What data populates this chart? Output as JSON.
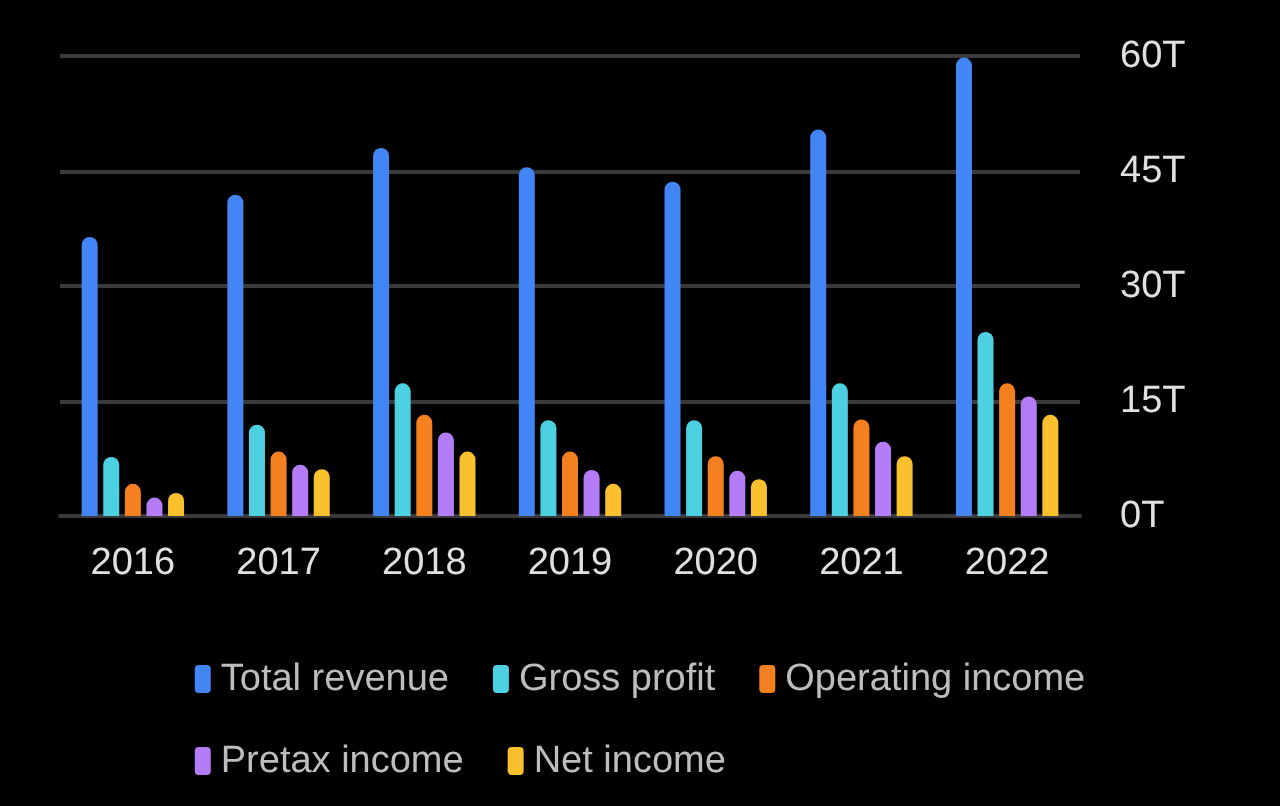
{
  "chart_data": {
    "type": "bar",
    "categories": [
      "2016",
      "2017",
      "2018",
      "2019",
      "2020",
      "2021",
      "2022"
    ],
    "series": [
      {
        "name": "Total revenue",
        "color": "#4285f4",
        "values": [
          36.4,
          41.9,
          48.0,
          45.5,
          43.6,
          50.4,
          59.8
        ]
      },
      {
        "name": "Gross profit",
        "color": "#4dd0e1",
        "values": [
          7.7,
          11.9,
          17.3,
          12.5,
          12.5,
          17.3,
          24.0
        ]
      },
      {
        "name": "Operating income",
        "color": "#f4801f",
        "values": [
          4.2,
          8.4,
          13.2,
          8.4,
          7.8,
          12.6,
          17.3
        ]
      },
      {
        "name": "Pretax income",
        "color": "#b47cf7",
        "values": [
          2.4,
          6.7,
          10.9,
          6.0,
          5.9,
          9.7,
          15.6
        ]
      },
      {
        "name": "Net income",
        "color": "#fbc02d",
        "values": [
          3.0,
          6.1,
          8.4,
          4.2,
          4.8,
          7.8,
          13.2
        ]
      }
    ],
    "ylim": [
      0,
      60
    ],
    "yticks": [
      {
        "value": 0,
        "label": "0T"
      },
      {
        "value": 15,
        "label": "15T"
      },
      {
        "value": 30,
        "label": "30T"
      },
      {
        "value": 45,
        "label": "45T"
      },
      {
        "value": 60,
        "label": "60T"
      }
    ],
    "grid": "y",
    "legend": "bottom"
  }
}
